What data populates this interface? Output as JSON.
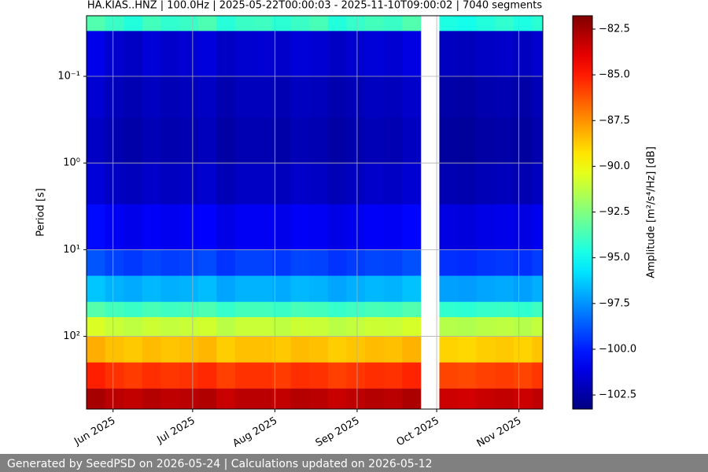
{
  "chart_data": {
    "type": "spectrogram",
    "title": "HA.KIAS..HNZ | 100.0Hz | 2025-05-22T00:00:03 - 2025-11-10T09:00:02 | 7040 segments",
    "ylabel": "Period [s]",
    "colorbar_label": "Amplitude [m²/s⁴/Hz] [dB]",
    "colormap": "jet",
    "log_y": true,
    "grid": true,
    "xlim": [
      "2025-05-22",
      "2025-11-10"
    ],
    "xticks": [
      {
        "value": "2025-06-01",
        "label": "Jun 2025"
      },
      {
        "value": "2025-07-01",
        "label": "Jul 2025"
      },
      {
        "value": "2025-08-01",
        "label": "Aug 2025"
      },
      {
        "value": "2025-09-01",
        "label": "Sep 2025"
      },
      {
        "value": "2025-10-01",
        "label": "Oct 2025"
      },
      {
        "value": "2025-11-01",
        "label": "Nov 2025"
      }
    ],
    "ylim": [
      0.02,
      690
    ],
    "yticks": [
      {
        "value": 0.1,
        "label": "10⁻¹"
      },
      {
        "value": 1,
        "label": "10⁰"
      },
      {
        "value": 10,
        "label": "10¹"
      },
      {
        "value": 100,
        "label": "10²"
      }
    ],
    "clim": [
      -103.27,
      -81.77
    ],
    "cticks": [
      {
        "value": -102.5,
        "label": "−102.5"
      },
      {
        "value": -100,
        "label": "−100.0"
      },
      {
        "value": -97.5,
        "label": "−97.5"
      },
      {
        "value": -95,
        "label": "−95.0"
      },
      {
        "value": -92.5,
        "label": "−92.5"
      },
      {
        "value": -90,
        "label": "−90.0"
      },
      {
        "value": -87.5,
        "label": "−87.5"
      },
      {
        "value": -85,
        "label": "−85.0"
      },
      {
        "value": -82.5,
        "label": "−82.5"
      }
    ],
    "x_edges": [
      "2025-05-22",
      "2025-05-29",
      "2025-06-05",
      "2025-06-12",
      "2025-06-19",
      "2025-06-26",
      "2025-07-03",
      "2025-07-10",
      "2025-07-17",
      "2025-07-24",
      "2025-07-31",
      "2025-08-07",
      "2025-08-14",
      "2025-08-21",
      "2025-08-28",
      "2025-09-04",
      "2025-09-11",
      "2025-09-18",
      "2025-09-25",
      "2025-10-02",
      "2025-10-09",
      "2025-10-16",
      "2025-10-23",
      "2025-10-30",
      "2025-11-06",
      "2025-11-10"
    ],
    "y_edges": [
      0.02,
      0.03,
      0.1,
      0.3,
      1,
      3,
      10,
      20,
      40,
      60,
      100,
      200,
      400,
      690
    ],
    "values": [
      [
        -93.5,
        -94,
        -94.5,
        -93.8,
        -94.2,
        -94,
        -93.6,
        -94.4,
        -94,
        -93.9,
        -94.3,
        -94,
        -93.7,
        -94.5,
        -94.1,
        -93.8,
        -94,
        -93.5,
        null,
        -94.6,
        -94.8,
        -94.5,
        -94.2,
        -94.6,
        -94.3
      ],
      [
        -101,
        -101.6,
        -101.8,
        -101.4,
        -101.7,
        -101.5,
        -101.3,
        -101.8,
        -101.6,
        -101.5,
        -101.7,
        -101.4,
        -101.5,
        -101.8,
        -101.6,
        -101.4,
        -101.5,
        -101.2,
        null,
        -101.9,
        -102,
        -101.8,
        -101.7,
        -101.9,
        -101.6
      ],
      [
        -101.5,
        -102,
        -102.2,
        -101.9,
        -102.1,
        -102,
        -101.8,
        -102.3,
        -102,
        -102,
        -102.2,
        -101.9,
        -102,
        -102.3,
        -102.1,
        -101.9,
        -102,
        -101.7,
        null,
        -102.4,
        -102.5,
        -102.3,
        -102.2,
        -102.4,
        -102.1
      ],
      [
        -101.8,
        -102.2,
        -102.4,
        -102.1,
        -102.3,
        -102.2,
        -102,
        -102.5,
        -102.2,
        -102.2,
        -102.4,
        -102.1,
        -102.2,
        -102.5,
        -102.3,
        -102.1,
        -102.2,
        -101.9,
        null,
        -102.6,
        -102.7,
        -102.5,
        -102.4,
        -102.6,
        -102.3
      ],
      [
        -101.4,
        -101.8,
        -102,
        -101.7,
        -101.9,
        -101.8,
        -101.6,
        -102.1,
        -101.8,
        -101.8,
        -102,
        -101.7,
        -101.8,
        -102.1,
        -101.9,
        -101.7,
        -101.8,
        -101.5,
        null,
        -102.2,
        -102.3,
        -102.1,
        -102,
        -102.2,
        -101.9
      ],
      [
        -100.4,
        -100.8,
        -101,
        -100.7,
        -100.9,
        -100.8,
        -100.6,
        -101.1,
        -100.8,
        -100.8,
        -101,
        -100.7,
        -100.8,
        -101.1,
        -100.9,
        -100.7,
        -100.8,
        -100.5,
        null,
        -101.2,
        -101.3,
        -101.1,
        -101,
        -101.2,
        -100.9
      ],
      [
        -98.8,
        -99.2,
        -99.4,
        -99.1,
        -99.3,
        -99.2,
        -99,
        -99.5,
        -99.2,
        -99.2,
        -99.4,
        -99.1,
        -99.2,
        -99.5,
        -99.3,
        -99.1,
        -99.2,
        -98.9,
        null,
        -99.6,
        -99.7,
        -99.5,
        -99.4,
        -99.6,
        -99.3
      ],
      [
        -96.4,
        -96.8,
        -97,
        -96.7,
        -96.9,
        -96.8,
        -96.6,
        -97.1,
        -96.8,
        -96.8,
        -97,
        -96.7,
        -96.8,
        -97.1,
        -96.9,
        -96.7,
        -96.8,
        -96.5,
        null,
        -97.2,
        -97.3,
        -97.1,
        -97,
        -97.2,
        -96.9
      ],
      [
        -93.4,
        -93.8,
        -94,
        -93.7,
        -93.9,
        -93.8,
        -93.6,
        -94.1,
        -93.8,
        -93.8,
        -94,
        -93.7,
        -93.8,
        -94.1,
        -93.9,
        -93.7,
        -93.8,
        -93.5,
        null,
        -94.2,
        -94.3,
        -94.1,
        -94,
        -94.2,
        -93.9
      ],
      [
        -90.6,
        -91,
        -91.2,
        -90.9,
        -91.1,
        -91,
        -90.8,
        -91.3,
        -91,
        -91,
        -91.2,
        -90.9,
        -91,
        -91.3,
        -91.1,
        -90.9,
        -91,
        -90.7,
        null,
        -91.4,
        -91.5,
        -91.3,
        -91.2,
        -91.4,
        -91.1
      ],
      [
        -88.1,
        -88.5,
        -88.7,
        -88.4,
        -88.6,
        -88.5,
        -88.3,
        -88.8,
        -88.5,
        -88.5,
        -88.7,
        -88.4,
        -88.5,
        -88.8,
        -88.6,
        -88.4,
        -88.5,
        -88.2,
        null,
        -88.9,
        -89,
        -88.8,
        -88.7,
        -88.9,
        -88.6
      ],
      [
        -85.1,
        -85.5,
        -85.7,
        -85.4,
        -85.6,
        -85.5,
        -85.3,
        -85.8,
        -85.5,
        -85.5,
        -85.7,
        -85.4,
        -85.5,
        -85.8,
        -85.6,
        -85.4,
        -85.5,
        -85.2,
        null,
        -85.9,
        -86,
        -85.8,
        -85.7,
        -85.9,
        -85.6
      ],
      [
        -82.6,
        -83,
        -83.2,
        -82.9,
        -83.1,
        -83,
        -82.8,
        -83.3,
        -83,
        -83,
        -83.2,
        -82.9,
        -83,
        -83.3,
        -83.1,
        -82.9,
        -83,
        -82.7,
        null,
        -83.4,
        -83.5,
        -83.3,
        -83.2,
        -83.4,
        -83.1
      ]
    ]
  },
  "footer": {
    "text": "Generated by SeedPSD on 2026-05-24 | Calculations updated on 2026-05-12"
  }
}
